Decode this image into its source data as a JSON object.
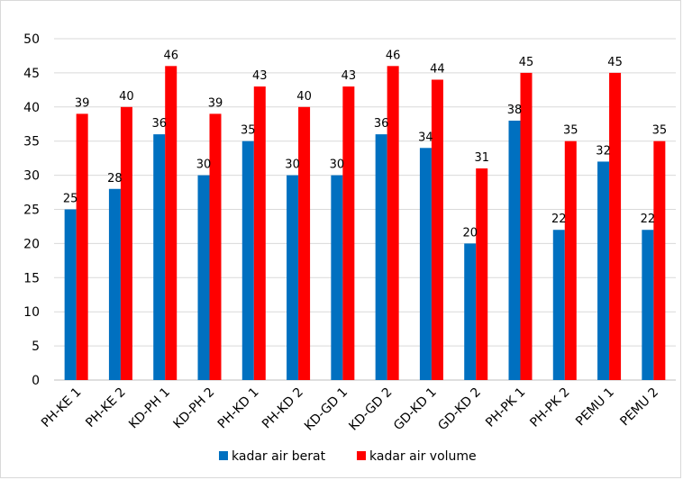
{
  "chart_data": {
    "type": "bar",
    "categories": [
      "PH-KE 1",
      "PH-KE 2",
      "KD-PH 1",
      "KD-PH 2",
      "PH-KD 1",
      "PH-KD 2",
      "KD-GD 1",
      "KD-GD 2",
      "GD-KD 1",
      "GD-KD 2",
      "PH-PK 1",
      "PH-PK 2",
      "PEMU 1",
      "PEMU 2"
    ],
    "series": [
      {
        "name": "kadar air berat",
        "color": "#0070c0",
        "values": [
          25,
          28,
          36,
          30,
          35,
          30,
          30,
          36,
          34,
          20,
          38,
          22,
          32,
          22
        ]
      },
      {
        "name": "kadar air volume",
        "color": "#ff0000",
        "values": [
          39,
          40,
          46,
          39,
          43,
          40,
          43,
          46,
          44,
          31,
          45,
          35,
          45,
          35
        ]
      }
    ],
    "title": "",
    "xlabel": "",
    "ylabel": "",
    "ylim": [
      0,
      50
    ],
    "yticks": [
      0,
      5,
      10,
      15,
      20,
      25,
      30,
      35,
      40,
      45,
      50
    ],
    "grid": true,
    "data_labels": true,
    "legend": "bottom"
  }
}
